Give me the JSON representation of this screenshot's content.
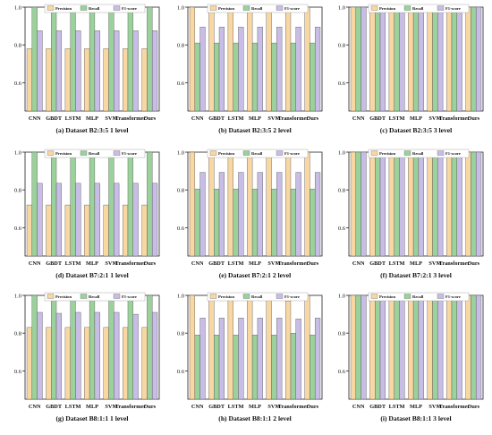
{
  "colors": {
    "Precision": "#f8d7a3",
    "Recall": "#9bd19a",
    "F1-score": "#c8bde6",
    "edge": "#555555"
  },
  "chart_data": [
    {
      "type": "bar",
      "caption": "(a)  Dataset  B2:3:5 1 level",
      "categories": [
        "CNN",
        "GBDT",
        "LSTM",
        "MLP",
        "SVM",
        "Transformer",
        "Ours"
      ],
      "ylim": [
        0.45,
        1.0
      ],
      "yticks": [
        "0.6",
        "0.8",
        "1.0"
      ],
      "ytick_values": [
        0.6,
        0.8,
        1.0
      ],
      "legend": [
        "Precision",
        "Recall",
        "F1-score"
      ],
      "series": [
        {
          "name": "Precision",
          "values": [
            0.78,
            0.78,
            0.78,
            0.78,
            0.78,
            0.78,
            0.78
          ]
        },
        {
          "name": "Recall",
          "values": [
            1.0,
            1.0,
            1.0,
            1.0,
            1.0,
            1.0,
            1.0
          ]
        },
        {
          "name": "F1-score",
          "values": [
            0.875,
            0.875,
            0.875,
            0.875,
            0.875,
            0.875,
            0.875
          ]
        }
      ]
    },
    {
      "type": "bar",
      "caption": "(b)  Dataset  B2:3:5 2 level",
      "categories": [
        "CNN",
        "GBDT",
        "LSTM",
        "MLP",
        "SVM",
        "Transformer",
        "Ours"
      ],
      "ylim": [
        0.45,
        1.0
      ],
      "yticks": [
        "0.6",
        "0.8",
        "1.0"
      ],
      "ytick_values": [
        0.6,
        0.8,
        1.0
      ],
      "legend": [
        "Precision",
        "Recall",
        "F1-score"
      ],
      "series": [
        {
          "name": "Precision",
          "values": [
            1.0,
            1.0,
            1.0,
            1.0,
            1.0,
            1.0,
            1.0
          ]
        },
        {
          "name": "Recall",
          "values": [
            0.81,
            0.81,
            0.81,
            0.81,
            0.81,
            0.81,
            0.81
          ]
        },
        {
          "name": "F1-score",
          "values": [
            0.895,
            0.895,
            0.895,
            0.895,
            0.895,
            0.895,
            0.895
          ]
        }
      ]
    },
    {
      "type": "bar",
      "caption": "(c)  Dataset B2:3:5 3 level",
      "categories": [
        "CNN",
        "GBDT",
        "LSTM",
        "MLP",
        "SVM",
        "Transformer",
        "Ours"
      ],
      "ylim": [
        0.45,
        1.0
      ],
      "yticks": [
        "0.6",
        "0.8",
        "1.0"
      ],
      "ytick_values": [
        0.6,
        0.8,
        1.0
      ],
      "legend": [
        "Precision",
        "Recall",
        "F1-score"
      ],
      "series": [
        {
          "name": "Precision",
          "values": [
            1.0,
            1.0,
            1.0,
            1.0,
            1.0,
            1.0,
            1.0
          ]
        },
        {
          "name": "Recall",
          "values": [
            1.0,
            1.0,
            1.0,
            1.0,
            1.0,
            1.0,
            1.0
          ]
        },
        {
          "name": "F1-score",
          "values": [
            1.0,
            1.0,
            1.0,
            1.0,
            1.0,
            1.0,
            1.0
          ]
        }
      ]
    },
    {
      "type": "bar",
      "caption": "(d)  Dataset B7:2:1 1 level",
      "categories": [
        "CNN",
        "GBDT",
        "LSTM",
        "MLP",
        "SVM",
        "Transformer",
        "Ours"
      ],
      "ylim": [
        0.45,
        1.0
      ],
      "yticks": [
        "0.6",
        "0.8",
        "1.0"
      ],
      "ytick_values": [
        0.6,
        0.8,
        1.0
      ],
      "legend": [
        "Precision",
        "Recall",
        "F1-score"
      ],
      "series": [
        {
          "name": "Precision",
          "values": [
            0.72,
            0.72,
            0.72,
            0.72,
            0.72,
            0.72,
            0.72
          ]
        },
        {
          "name": "Recall",
          "values": [
            1.0,
            1.0,
            1.0,
            1.0,
            1.0,
            1.0,
            1.0
          ]
        },
        {
          "name": "F1-score",
          "values": [
            0.835,
            0.835,
            0.835,
            0.835,
            0.835,
            0.835,
            0.835
          ]
        }
      ]
    },
    {
      "type": "bar",
      "caption": "(e)  Dataset B7:2:1 2 level",
      "categories": [
        "CNN",
        "GBDT",
        "LSTM",
        "MLP",
        "SVM",
        "Transformer",
        "Ours"
      ],
      "ylim": [
        0.45,
        1.0
      ],
      "yticks": [
        "0.6",
        "0.8",
        "1.0"
      ],
      "ytick_values": [
        0.6,
        0.8,
        1.0
      ],
      "legend": [
        "Precision",
        "Recall",
        "F1-score"
      ],
      "series": [
        {
          "name": "Precision",
          "values": [
            1.0,
            1.0,
            1.0,
            1.0,
            1.0,
            1.0,
            1.0
          ]
        },
        {
          "name": "Recall",
          "values": [
            0.805,
            0.805,
            0.805,
            0.805,
            0.805,
            0.805,
            0.805
          ]
        },
        {
          "name": "F1-score",
          "values": [
            0.893,
            0.893,
            0.893,
            0.893,
            0.893,
            0.893,
            0.893
          ]
        }
      ]
    },
    {
      "type": "bar",
      "caption": "(f)  Dataset B7:2:1 3 level",
      "categories": [
        "CNN",
        "GBDT",
        "LSTM",
        "MLP",
        "SVM",
        "Transformer",
        "Ours"
      ],
      "ylim": [
        0.45,
        1.0
      ],
      "yticks": [
        "0.6",
        "0.8",
        "1.0"
      ],
      "ytick_values": [
        0.6,
        0.8,
        1.0
      ],
      "legend": [
        "Precision",
        "Recall",
        "F1-score"
      ],
      "series": [
        {
          "name": "Precision",
          "values": [
            1.0,
            1.0,
            1.0,
            1.0,
            1.0,
            1.0,
            1.0
          ]
        },
        {
          "name": "Recall",
          "values": [
            1.0,
            1.0,
            1.0,
            1.0,
            1.0,
            1.0,
            1.0
          ]
        },
        {
          "name": "F1-score",
          "values": [
            1.0,
            1.0,
            1.0,
            1.0,
            1.0,
            1.0,
            1.0
          ]
        }
      ]
    },
    {
      "type": "bar",
      "caption": "(g)  Dataset B8:1:1 1 level",
      "categories": [
        "CNN",
        "GBDT",
        "LSTM",
        "MLP",
        "SVM",
        "Transformer",
        "Ours"
      ],
      "ylim": [
        0.45,
        1.0
      ],
      "yticks": [
        "0.6",
        "0.8",
        "1.0"
      ],
      "ytick_values": [
        0.6,
        0.8,
        1.0
      ],
      "legend": [
        "Precision",
        "Recall",
        "F1-score"
      ],
      "series": [
        {
          "name": "Precision",
          "values": [
            0.83,
            0.83,
            0.83,
            0.83,
            0.83,
            0.83,
            0.83
          ]
        },
        {
          "name": "Recall",
          "values": [
            1.0,
            1.0,
            1.0,
            1.0,
            1.0,
            0.98,
            1.0
          ]
        },
        {
          "name": "F1-score",
          "values": [
            0.91,
            0.905,
            0.91,
            0.91,
            0.91,
            0.9,
            0.91
          ]
        }
      ]
    },
    {
      "type": "bar",
      "caption": "(h)  Dataset B8:1:1 2 level",
      "categories": [
        "CNN",
        "GBDT",
        "LSTM",
        "MLP",
        "SVM",
        "Transformer",
        "Ours"
      ],
      "ylim": [
        0.45,
        1.0
      ],
      "yticks": [
        "0.6",
        "0.8",
        "1.0"
      ],
      "ytick_values": [
        0.6,
        0.8,
        1.0
      ],
      "legend": [
        "Precision",
        "Recall",
        "F1-score"
      ],
      "series": [
        {
          "name": "Precision",
          "values": [
            1.0,
            0.99,
            1.0,
            1.0,
            0.99,
            0.97,
            1.0
          ]
        },
        {
          "name": "Recall",
          "values": [
            0.79,
            0.79,
            0.79,
            0.79,
            0.79,
            0.8,
            0.79
          ]
        },
        {
          "name": "F1-score",
          "values": [
            0.88,
            0.88,
            0.88,
            0.88,
            0.88,
            0.875,
            0.88
          ]
        }
      ]
    },
    {
      "type": "bar",
      "caption": "(i)  Dataset B8:1:1 3 level",
      "categories": [
        "CNN",
        "GBDT",
        "LSTM",
        "MLP",
        "SVM",
        "Transformer",
        "Ours"
      ],
      "ylim": [
        0.45,
        1.0
      ],
      "yticks": [
        "0.6",
        "0.8",
        "1.0"
      ],
      "ytick_values": [
        0.6,
        0.8,
        1.0
      ],
      "legend": [
        "Precision",
        "Recall",
        "F1-score"
      ],
      "series": [
        {
          "name": "Precision",
          "values": [
            1.0,
            1.0,
            1.0,
            1.0,
            1.0,
            1.0,
            1.0
          ]
        },
        {
          "name": "Recall",
          "values": [
            1.0,
            1.0,
            1.0,
            1.0,
            1.0,
            1.0,
            1.0
          ]
        },
        {
          "name": "F1-score",
          "values": [
            1.0,
            1.0,
            1.0,
            1.0,
            1.0,
            1.0,
            1.0
          ]
        }
      ]
    }
  ]
}
